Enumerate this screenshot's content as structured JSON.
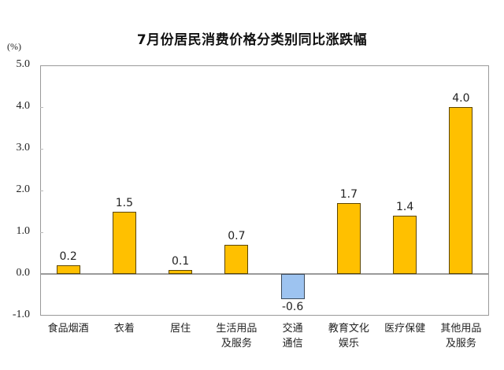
{
  "chart_data": {
    "type": "bar",
    "title": "7月份居民消费价格分类别同比涨跌幅",
    "ylabel": "(%)",
    "xlabel": "",
    "ylim": [
      -1.0,
      5.0
    ],
    "yticks": [
      "5.0",
      "4.0",
      "3.0",
      "2.0",
      "1.0",
      "0.0",
      "-1.0"
    ],
    "grid": false,
    "legend": null,
    "categories": [
      [
        "食品烟酒"
      ],
      [
        "衣着"
      ],
      [
        "居住"
      ],
      [
        "生活用品",
        "及服务"
      ],
      [
        "交通",
        "通信"
      ],
      [
        "教育文化",
        "娱乐"
      ],
      [
        "医疗保健"
      ],
      [
        "其他用品",
        "及服务"
      ]
    ],
    "values": [
      0.2,
      1.5,
      0.1,
      0.7,
      -0.6,
      1.7,
      1.4,
      4.0
    ],
    "value_labels": [
      "0.2",
      "1.5",
      "0.1",
      "0.7",
      "-0.6",
      "1.7",
      "1.4",
      "4.0"
    ],
    "colors": {
      "positive": "#FFC000",
      "negative": "#9DC3F0",
      "axis": "#9A9A9A"
    }
  }
}
